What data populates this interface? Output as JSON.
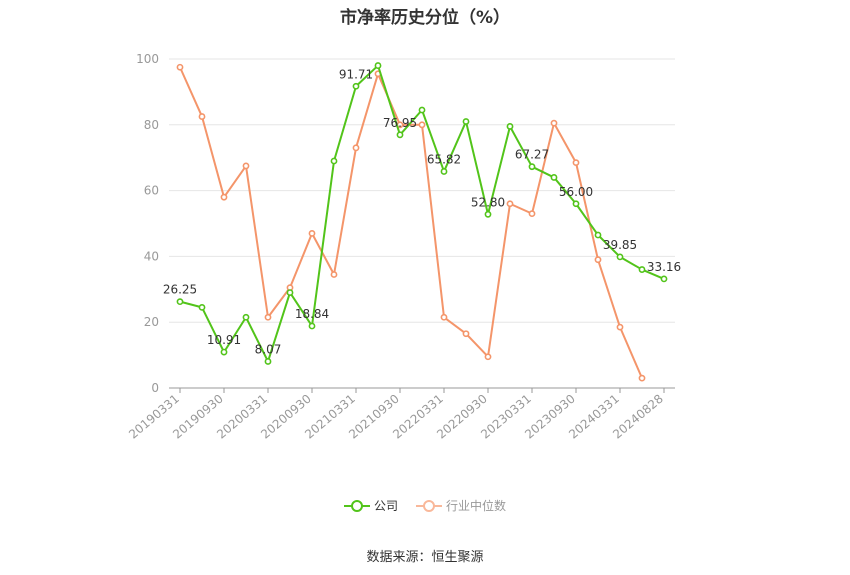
{
  "title": "市净率历史分位（%）",
  "source": "数据来源：恒生聚源",
  "legend": {
    "company": "公司",
    "industry": "行业中位数"
  },
  "colors": {
    "company": "#52c41a",
    "industry": "#f4956a",
    "grid": "#e6e6e6",
    "axis": "#999999"
  },
  "chart_data": {
    "type": "line",
    "ylim": [
      0,
      100
    ],
    "yticks": [
      0,
      20,
      40,
      60,
      80,
      100
    ],
    "xticks": [
      "20190331",
      "20190930",
      "20200331",
      "20200930",
      "20210331",
      "20210930",
      "20220331",
      "20220930",
      "20230331",
      "20230930",
      "20240331",
      "20240828"
    ],
    "grid": true,
    "legend_position": "bottom",
    "series": [
      {
        "name": "公司",
        "key": "company",
        "values": [
          26.25,
          24.5,
          10.91,
          21.5,
          8.07,
          29.0,
          18.84,
          69.0,
          91.71,
          98.0,
          76.95,
          84.5,
          65.82,
          81.0,
          52.8,
          79.5,
          67.27,
          64.0,
          56.0,
          46.5,
          39.85,
          36.0,
          33.16
        ],
        "labels": [
          "26.25",
          null,
          "10.91",
          null,
          "8.07",
          null,
          "18.84",
          null,
          "91.71",
          null,
          "76.95",
          null,
          "65.82",
          null,
          "52.80",
          null,
          "67.27",
          null,
          "56.00",
          null,
          "39.85",
          null,
          "33.16"
        ]
      },
      {
        "name": "行业中位数",
        "key": "industry",
        "values": [
          97.5,
          82.5,
          58.0,
          67.5,
          21.5,
          30.5,
          47.0,
          34.5,
          73.0,
          95.5,
          80.0,
          80.0,
          21.5,
          16.5,
          9.5,
          56.0,
          53.0,
          80.5,
          68.5,
          39.0,
          18.5,
          3.0
        ],
        "labels": []
      }
    ]
  }
}
